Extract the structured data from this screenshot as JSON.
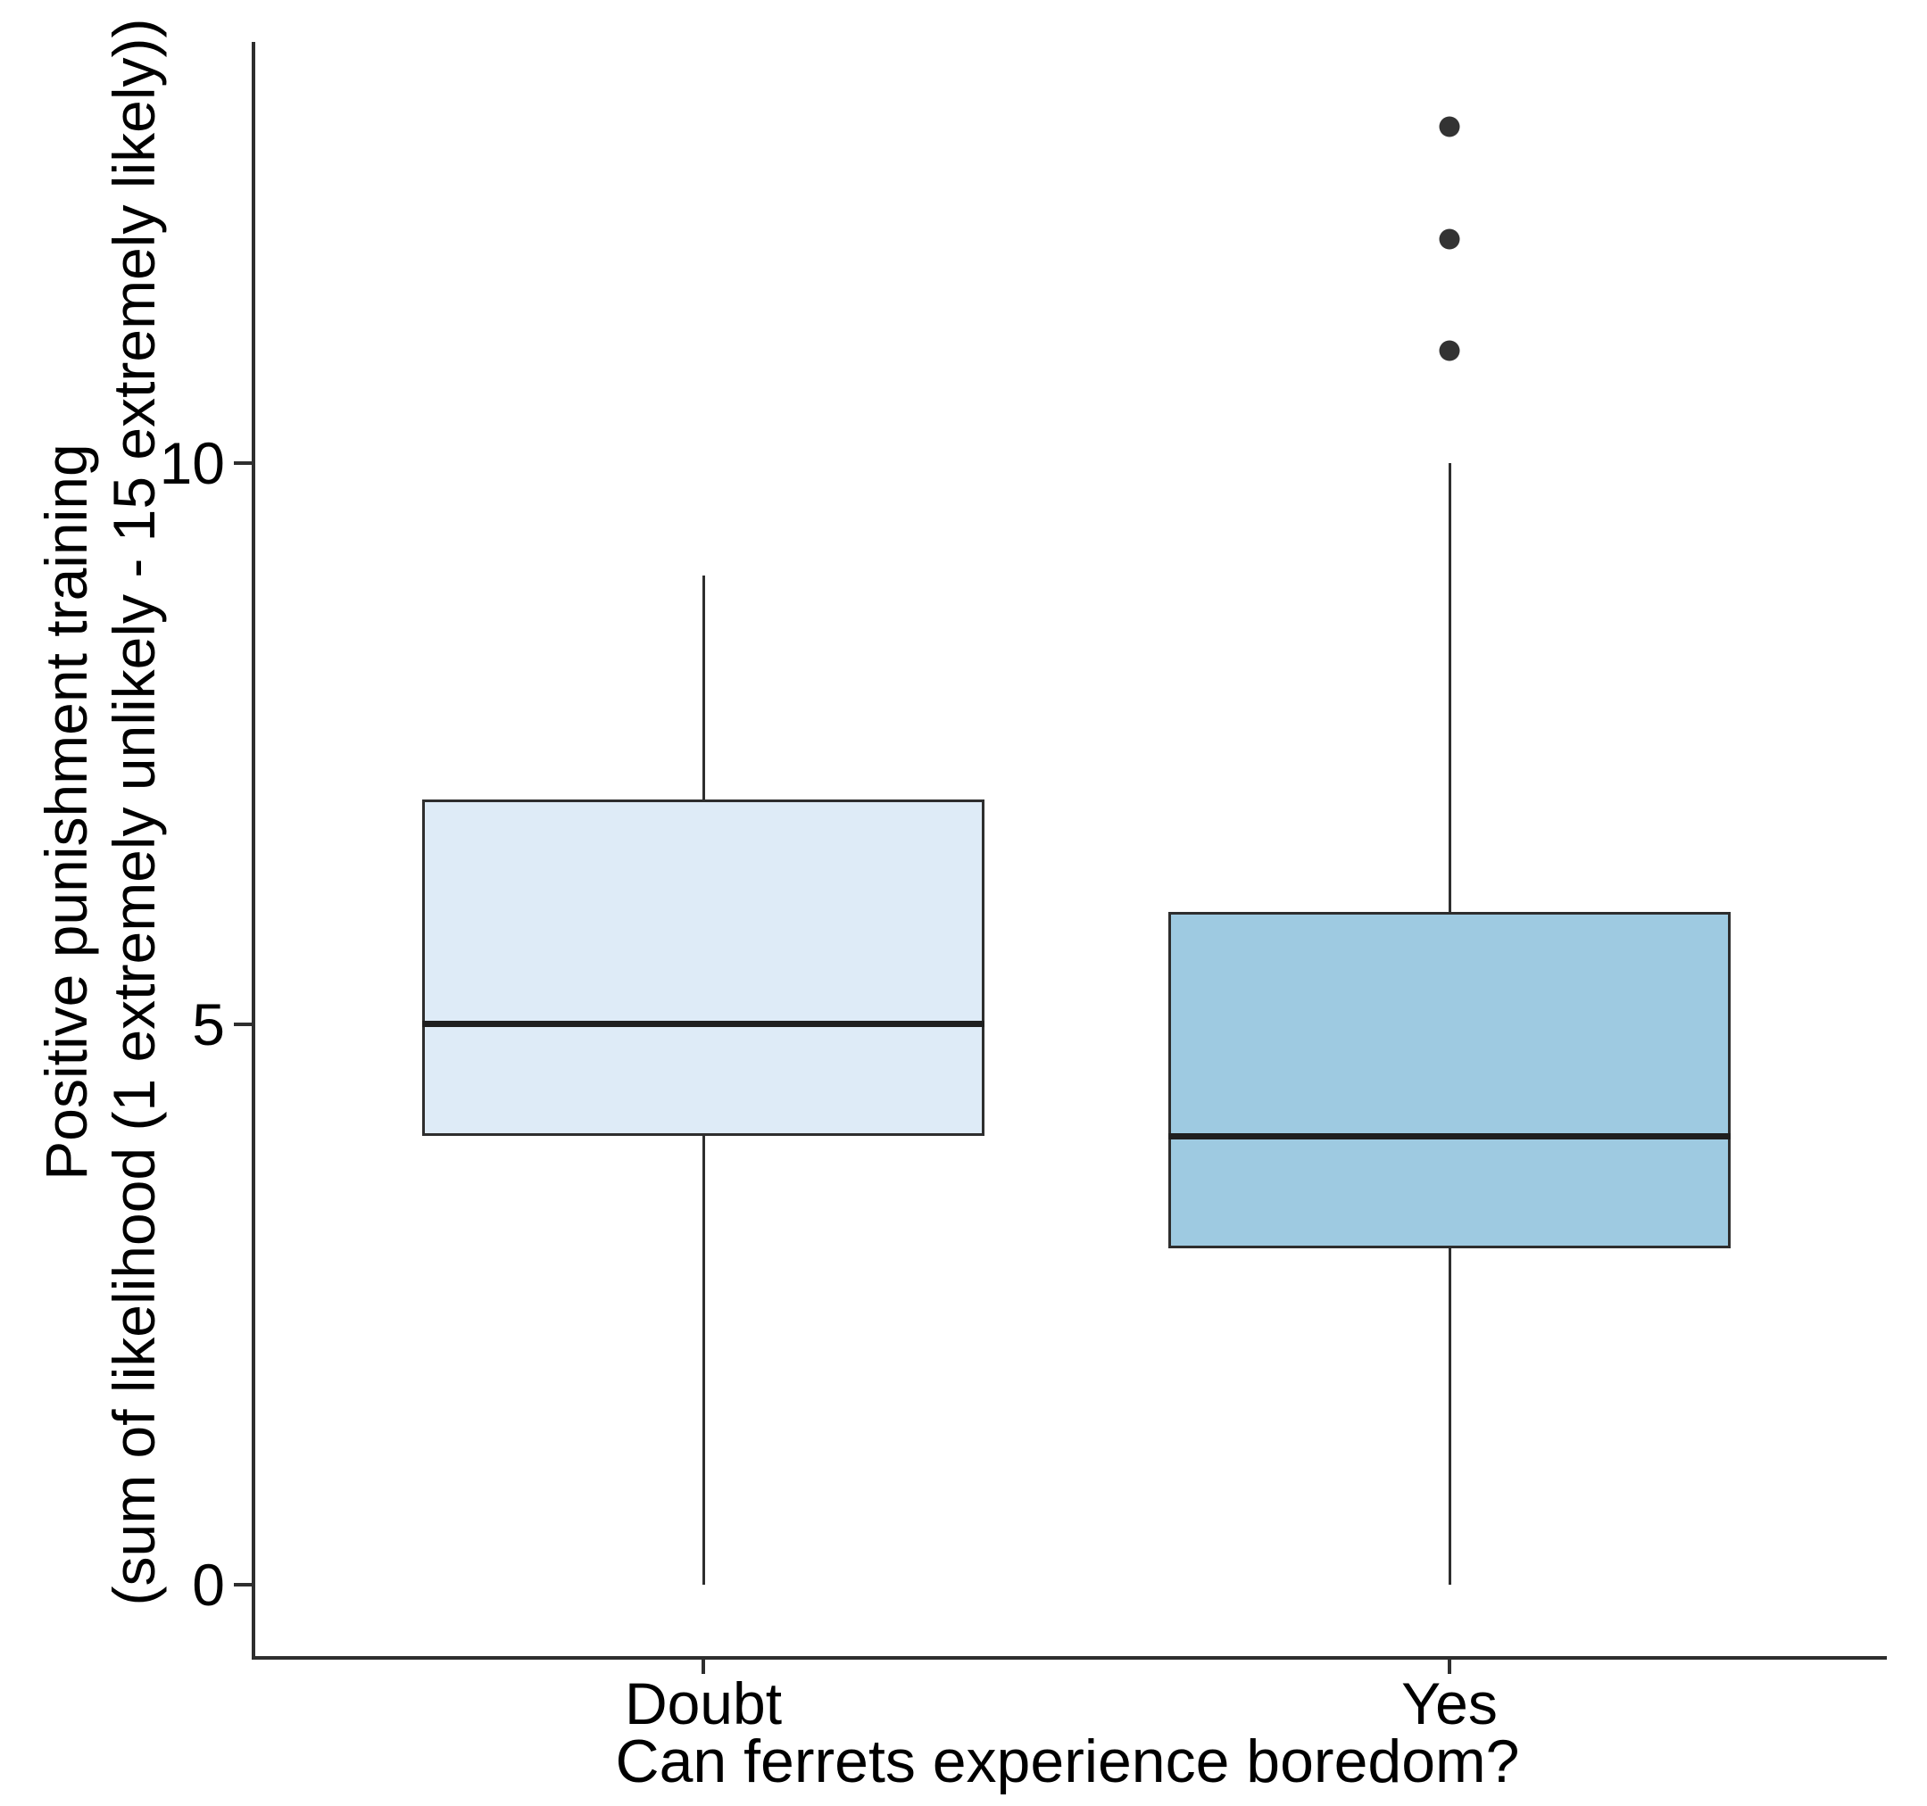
{
  "chart_data": {
    "type": "boxplot",
    "title": "",
    "xlabel": "Can ferrets experience boredom?",
    "ylabel_lines": [
      "Positive punishment training",
      "(sum of likelihood (1 extremely unlikely - 15 extremely likely))"
    ],
    "categories": [
      "Doubt",
      "Yes"
    ],
    "y_ticks": [
      0,
      5,
      10
    ],
    "ylim": [
      -0.6,
      13.8
    ],
    "grid": false,
    "legend": false,
    "series": [
      {
        "category": "Doubt",
        "whisker_low": 0,
        "q1": 4,
        "median": 5,
        "q3": 7,
        "whisker_high": 9,
        "outliers": [],
        "fill": "#DEEBF7"
      },
      {
        "category": "Yes",
        "whisker_low": 0,
        "q1": 3,
        "median": 4,
        "q3": 6,
        "whisker_high": 10,
        "outliers": [
          11,
          12,
          13
        ],
        "fill": "#9ECAE1"
      }
    ],
    "colors": {
      "box_stroke": "#2e2e2e",
      "median_line": "#1f1f1f",
      "axis_line": "#2e2e2e",
      "outlier_dot": "#333333",
      "text": "#000000"
    }
  }
}
